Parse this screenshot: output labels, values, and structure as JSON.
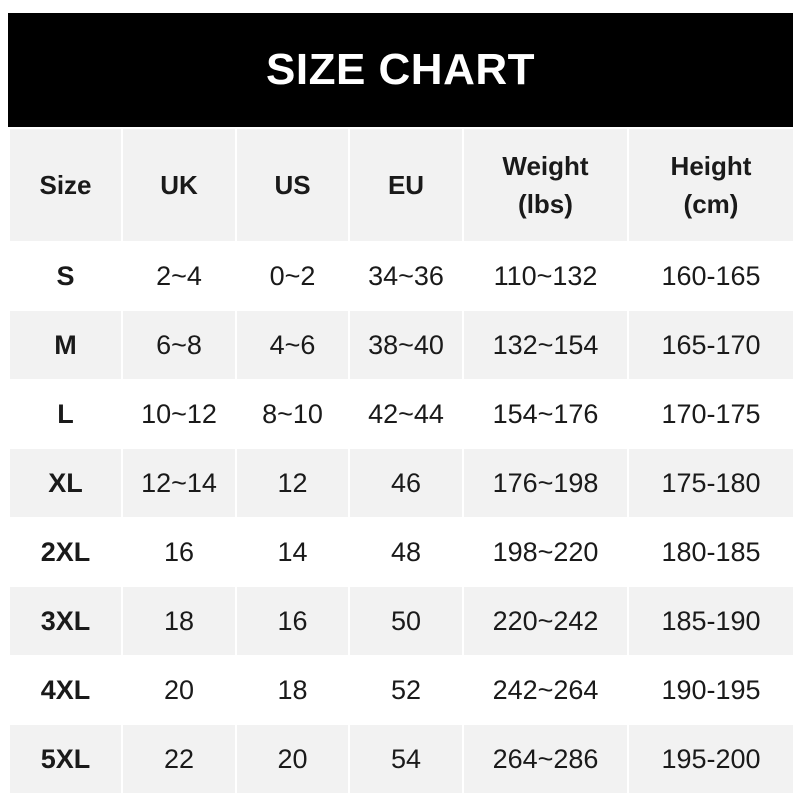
{
  "title": "SIZE CHART",
  "colors": {
    "header_bg": "#000000",
    "header_row_bg": "#f2f2f2",
    "stripe_bg": "#f2f2f2",
    "text": "#1a1a1a"
  },
  "columns": [
    "Size",
    "UK",
    "US",
    "EU",
    "Weight\n(lbs)",
    "Height\n(cm)"
  ],
  "column_lines": [
    [
      "Size"
    ],
    [
      "UK"
    ],
    [
      "US"
    ],
    [
      "EU"
    ],
    [
      "Weight",
      "(lbs)"
    ],
    [
      "Height",
      "(cm)"
    ]
  ],
  "rows": [
    [
      "S",
      "2~4",
      "0~2",
      "34~36",
      "110~132",
      "160-165"
    ],
    [
      "M",
      "6~8",
      "4~6",
      "38~40",
      "132~154",
      "165-170"
    ],
    [
      "L",
      "10~12",
      "8~10",
      "42~44",
      "154~176",
      "170-175"
    ],
    [
      "XL",
      "12~14",
      "12",
      "46",
      "176~198",
      "175-180"
    ],
    [
      "2XL",
      "16",
      "14",
      "48",
      "198~220",
      "180-185"
    ],
    [
      "3XL",
      "18",
      "16",
      "50",
      "220~242",
      "185-190"
    ],
    [
      "4XL",
      "20",
      "18",
      "52",
      "242~264",
      "190-195"
    ],
    [
      "5XL",
      "22",
      "20",
      "54",
      "264~286",
      "195-200"
    ]
  ]
}
